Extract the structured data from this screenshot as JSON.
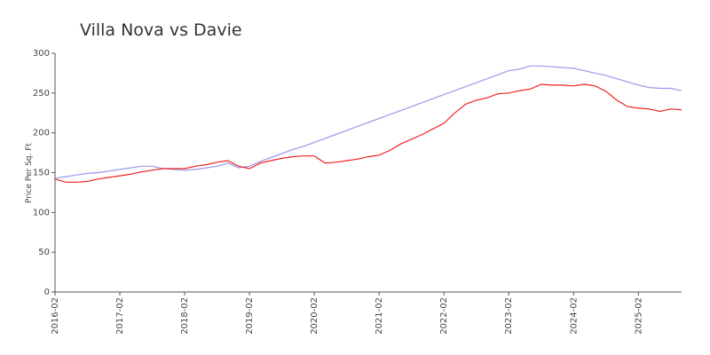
{
  "chart_data": {
    "type": "line",
    "title": "Villa Nova vs Davie",
    "y_label": "Price Per Sq. Ft",
    "categories": [
      "2016-02",
      null,
      null,
      null,
      null,
      null,
      "2017-02",
      null,
      null,
      null,
      null,
      null,
      "2018-02",
      null,
      null,
      null,
      null,
      null,
      "2019-02",
      null,
      null,
      null,
      null,
      null,
      "2020-02",
      null,
      null,
      null,
      null,
      null,
      "2021-02",
      null,
      null,
      null,
      null,
      null,
      "2022-02",
      null,
      null,
      null,
      null,
      null,
      "2023-02",
      null,
      null,
      null,
      null,
      null,
      "2024-02",
      null,
      null,
      null,
      null,
      null,
      "2025-02",
      null,
      null,
      null,
      null
    ],
    "series": [
      {
        "color": "#9999ee",
        "values": [
          143,
          145,
          147,
          149,
          150,
          152,
          154,
          156,
          158,
          158,
          155,
          154,
          153,
          154,
          156,
          158,
          162,
          156,
          158,
          164,
          169,
          174,
          179,
          183,
          188,
          193,
          198,
          203,
          208,
          213,
          218,
          223,
          228,
          233,
          238,
          243,
          248,
          253,
          258,
          263,
          268,
          273,
          278,
          280,
          284,
          284,
          283,
          282,
          281,
          278,
          275,
          272,
          268,
          264,
          260,
          257,
          256,
          256,
          253
        ]
      },
      {
        "color": "#ee2222",
        "values": [
          142,
          138,
          138,
          139,
          142,
          144,
          146,
          148,
          151,
          153,
          155,
          155,
          155,
          158,
          160,
          163,
          165,
          158,
          155,
          162,
          165,
          168,
          170,
          171,
          171,
          162,
          163,
          165,
          167,
          170,
          172,
          178,
          186,
          192,
          198,
          205,
          212,
          225,
          236,
          241,
          244,
          249,
          250,
          253,
          255,
          261,
          260,
          260,
          259,
          261,
          259,
          252,
          241,
          233,
          231,
          230,
          227,
          230,
          229
        ]
      }
    ],
    "ylim": [
      0,
      300
    ],
    "yticks": [
      0,
      50,
      100,
      150,
      200,
      250,
      300
    ]
  }
}
